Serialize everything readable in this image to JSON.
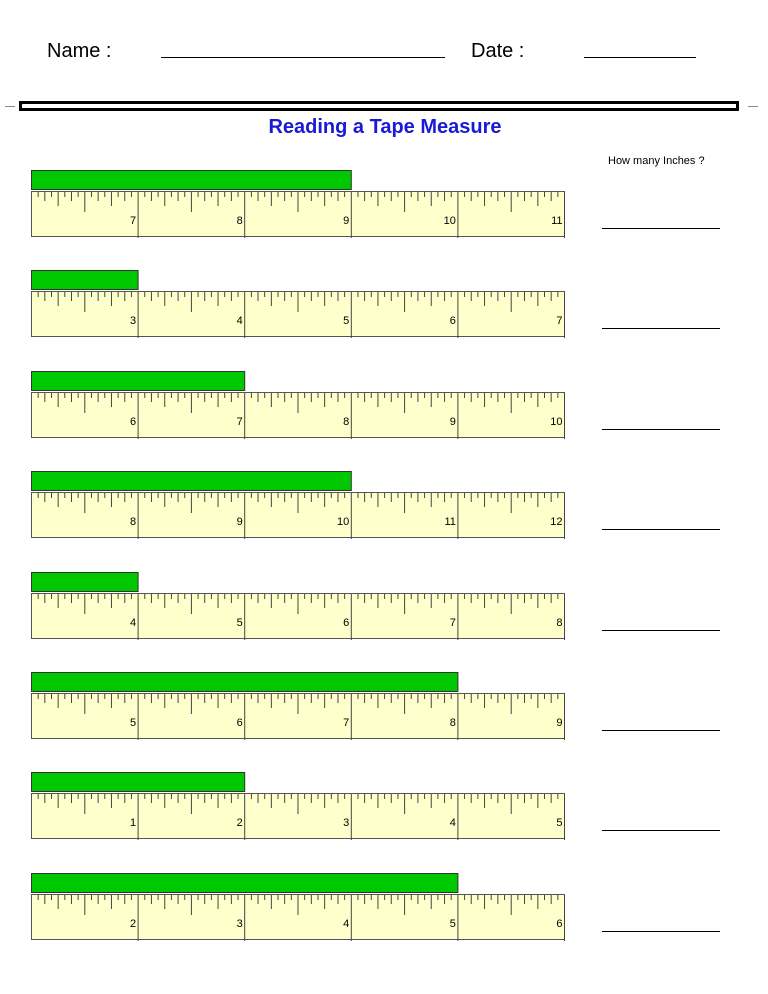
{
  "header": {
    "name_label": "Name :",
    "date_label": "Date :"
  },
  "title": "Reading a Tape Measure",
  "question": "How many Inches ?",
  "colors": {
    "bar": "#00c800",
    "ruler": "#ffffcc",
    "title": "#1a1ad6"
  },
  "rulers": [
    {
      "start": 6,
      "labels": [
        "7",
        "8",
        "9",
        "10",
        "11"
      ],
      "bar_inches": 3
    },
    {
      "start": 2,
      "labels": [
        "3",
        "4",
        "5",
        "6",
        "7"
      ],
      "bar_inches": 1
    },
    {
      "start": 5,
      "labels": [
        "6",
        "7",
        "8",
        "9",
        "10"
      ],
      "bar_inches": 2
    },
    {
      "start": 7,
      "labels": [
        "8",
        "9",
        "10",
        "11",
        "12"
      ],
      "bar_inches": 3
    },
    {
      "start": 3,
      "labels": [
        "4",
        "5",
        "6",
        "7",
        "8"
      ],
      "bar_inches": 1
    },
    {
      "start": 4,
      "labels": [
        "5",
        "6",
        "7",
        "8",
        "9"
      ],
      "bar_inches": 4
    },
    {
      "start": 0,
      "labels": [
        "1",
        "2",
        "3",
        "4",
        "5"
      ],
      "bar_inches": 2
    },
    {
      "start": 1,
      "labels": [
        "2",
        "3",
        "4",
        "5",
        "6"
      ],
      "bar_inches": 4
    }
  ]
}
